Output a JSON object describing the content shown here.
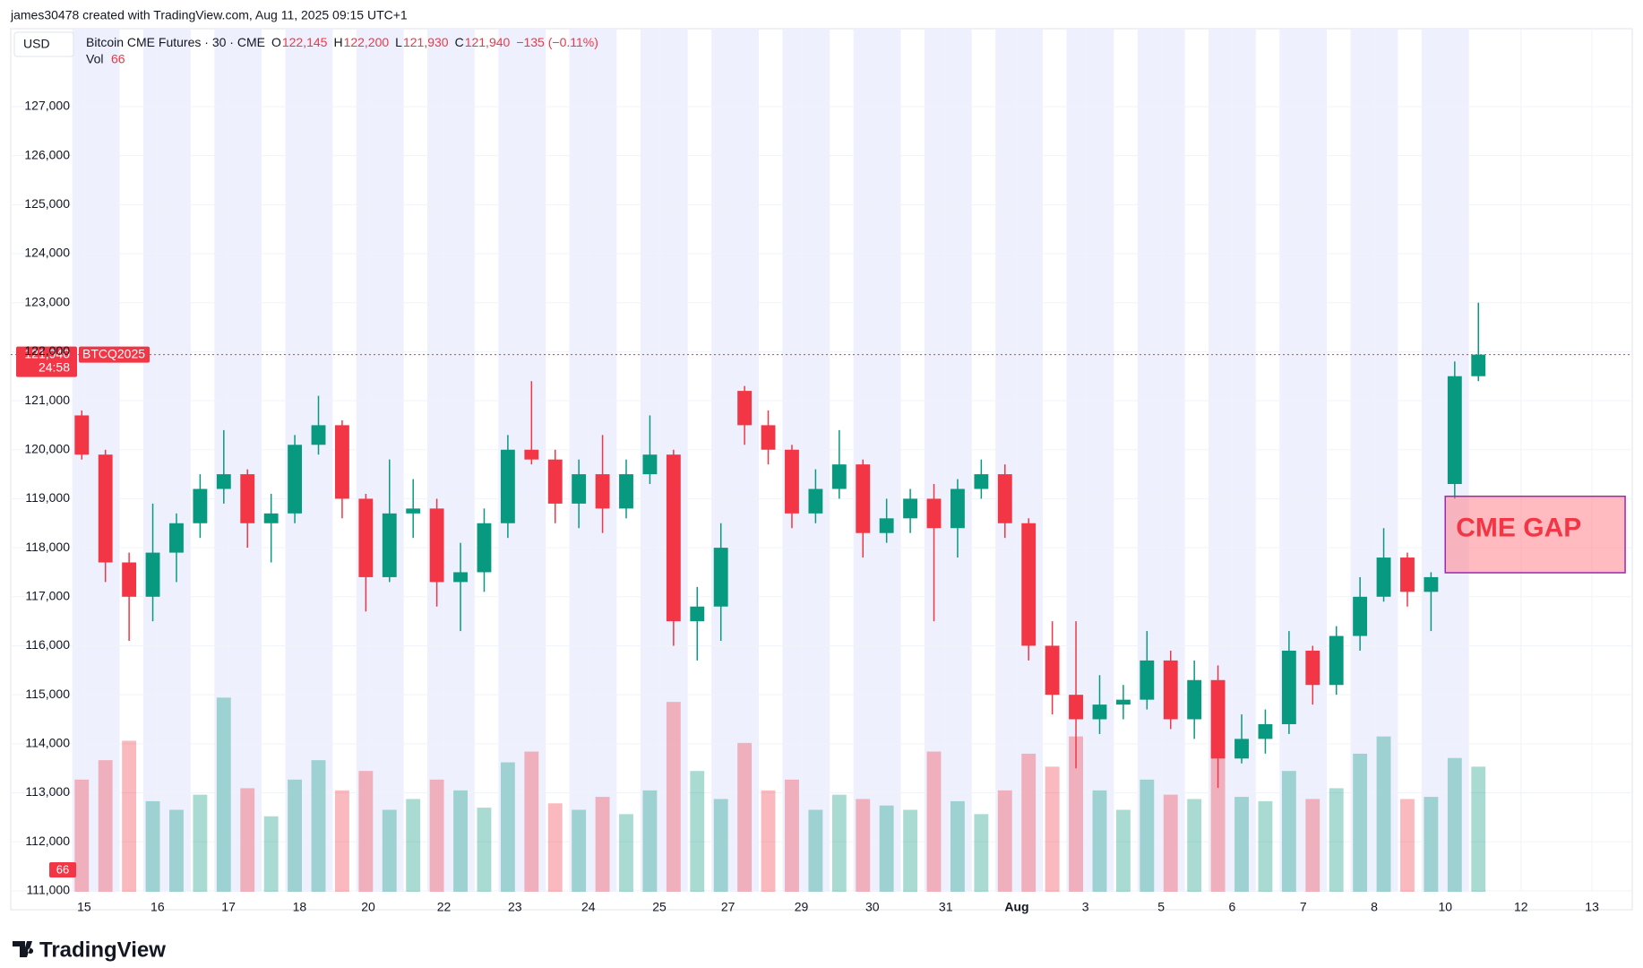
{
  "header": "james30478 created with TradingView.com, Aug 11, 2025 09:15 UTC+1",
  "footer": "TradingView",
  "chart_data": {
    "type": "candlestick",
    "title": "Bitcoin CME Futures · 30 · CME",
    "currency": "USD",
    "ohlc_legend": [
      {
        "key": "O",
        "value": "122,145"
      },
      {
        "key": "H",
        "value": "122,200"
      },
      {
        "key": "L",
        "value": "121,930"
      },
      {
        "key": "C",
        "value": "121,940"
      }
    ],
    "change": "−135 (−0.11%)",
    "volume_legend": {
      "name": "Vol",
      "value": 66
    },
    "symbol_tag": "BTCQ2025",
    "last_price": {
      "value": 121940,
      "label": "121,940"
    },
    "countdown": "24:58",
    "up_color": "#089981",
    "down_color": "#f23645",
    "open": [
      120700,
      119900,
      117700,
      117000,
      117900,
      118500,
      119200,
      119500,
      118500,
      118700,
      120100,
      120500,
      119000,
      117400,
      118700,
      118800,
      117300,
      117500,
      118500,
      120000,
      119800,
      118900,
      119500,
      118800,
      119500,
      119900,
      116500,
      116800,
      121200,
      120500,
      120000,
      118700,
      119200,
      119700,
      118300,
      118600,
      119000,
      118400,
      119200,
      119500,
      118500,
      116000,
      115000,
      114500,
      114800,
      114900,
      115700,
      114500,
      115300,
      113700,
      114100,
      114400,
      115900,
      115200,
      116200,
      117000,
      117800,
      117100,
      119300,
      121500
    ],
    "high": [
      120800,
      120000,
      117900,
      118900,
      118700,
      119500,
      120400,
      119600,
      119100,
      120300,
      121100,
      120600,
      119100,
      119800,
      119400,
      119000,
      118100,
      118800,
      120300,
      121400,
      120000,
      119800,
      120300,
      119800,
      120700,
      120000,
      117200,
      118500,
      121300,
      120800,
      120100,
      119600,
      120400,
      119800,
      119000,
      119200,
      119300,
      119400,
      119800,
      119700,
      118600,
      116500,
      116500,
      115400,
      115200,
      116300,
      115900,
      115700,
      115600,
      114600,
      114700,
      116300,
      116000,
      116400,
      117400,
      118400,
      117900,
      117500,
      121800,
      123000
    ],
    "low": [
      119800,
      117300,
      116100,
      116500,
      117300,
      118200,
      118900,
      118000,
      117700,
      118500,
      119900,
      118600,
      116700,
      117300,
      118200,
      116800,
      116300,
      117100,
      118200,
      119700,
      118500,
      118400,
      118300,
      118600,
      119300,
      116000,
      115700,
      116100,
      120100,
      119700,
      118400,
      118500,
      119000,
      117800,
      118100,
      118300,
      116500,
      117800,
      119000,
      118200,
      115700,
      114600,
      113500,
      114200,
      114500,
      114700,
      114300,
      114100,
      113100,
      113600,
      113800,
      114200,
      114800,
      115000,
      115900,
      116900,
      116800,
      116300,
      119000,
      121400
    ],
    "close": [
      119900,
      117700,
      117000,
      117900,
      118500,
      119200,
      119500,
      118500,
      118700,
      120100,
      120500,
      119000,
      117400,
      118700,
      118800,
      117300,
      117500,
      118500,
      120000,
      119800,
      118900,
      119500,
      118800,
      119500,
      119900,
      116500,
      116800,
      118000,
      120500,
      120000,
      118700,
      119200,
      119700,
      118300,
      118600,
      119000,
      118400,
      119200,
      119500,
      118500,
      116000,
      115000,
      114500,
      114800,
      114900,
      115700,
      114500,
      115300,
      113700,
      114100,
      114400,
      115900,
      115200,
      116200,
      117000,
      117800,
      117100,
      117400,
      121500,
      121940
    ],
    "volume": [
      520,
      610,
      700,
      420,
      380,
      450,
      900,
      480,
      350,
      520,
      610,
      470,
      560,
      380,
      430,
      520,
      470,
      390,
      600,
      650,
      410,
      380,
      440,
      360,
      470,
      880,
      560,
      430,
      690,
      470,
      520,
      380,
      450,
      430,
      400,
      380,
      650,
      420,
      360,
      470,
      640,
      580,
      720,
      470,
      380,
      520,
      450,
      430,
      700,
      440,
      420,
      560,
      430,
      480,
      640,
      720,
      430,
      440,
      620,
      580
    ],
    "volume_lim": [
      0,
      4000
    ],
    "xlim": [
      -3,
      65.5
    ],
    "xticks": [
      {
        "value": 0.1,
        "label": "15"
      },
      {
        "value": 3.2,
        "label": "16"
      },
      {
        "value": 6.2,
        "label": "17"
      },
      {
        "value": 9.2,
        "label": "18"
      },
      {
        "value": 12.1,
        "label": "20"
      },
      {
        "value": 15.3,
        "label": "22"
      },
      {
        "value": 18.3,
        "label": "23"
      },
      {
        "value": 21.4,
        "label": "24"
      },
      {
        "value": 24.4,
        "label": "25"
      },
      {
        "value": 27.3,
        "label": "27"
      },
      {
        "value": 30.4,
        "label": "29"
      },
      {
        "value": 33.4,
        "label": "30"
      },
      {
        "value": 36.5,
        "label": "31"
      },
      {
        "value": 39.5,
        "label": "Aug"
      },
      {
        "value": 42.4,
        "label": "3"
      },
      {
        "value": 45.6,
        "label": "5"
      },
      {
        "value": 48.6,
        "label": "6"
      },
      {
        "value": 51.6,
        "label": "7"
      },
      {
        "value": 54.6,
        "label": "8"
      },
      {
        "value": 57.6,
        "label": "10"
      },
      {
        "value": 60.8,
        "label": "12"
      },
      {
        "value": 63.8,
        "label": "13"
      }
    ],
    "ylim": [
      110980,
      128590
    ],
    "yticks": [
      {
        "value": 111000,
        "label": "111,000"
      },
      {
        "value": 112000,
        "label": "112,000"
      },
      {
        "value": 113000,
        "label": "113,000"
      },
      {
        "value": 114000,
        "label": "114,000"
      },
      {
        "value": 115000,
        "label": "115,000"
      },
      {
        "value": 116000,
        "label": "116,000"
      },
      {
        "value": 117000,
        "label": "117,000"
      },
      {
        "value": 118000,
        "label": "118,000"
      },
      {
        "value": 119000,
        "label": "119,000"
      },
      {
        "value": 120000,
        "label": "120,000"
      },
      {
        "value": 121000,
        "label": "121,000"
      },
      {
        "value": 122000,
        "label": "122,000"
      },
      {
        "value": 123000,
        "label": "123,000"
      },
      {
        "value": 124000,
        "label": "124,000"
      },
      {
        "value": 125000,
        "label": "125,000"
      },
      {
        "value": 126000,
        "label": "126,000"
      },
      {
        "value": 127000,
        "label": "127,000"
      }
    ],
    "annotation": {
      "text": "CME GAP",
      "x": [
        57.6,
        65.2
      ],
      "y": [
        117490,
        119050
      ],
      "color": "#f23645"
    },
    "grid": true
  }
}
